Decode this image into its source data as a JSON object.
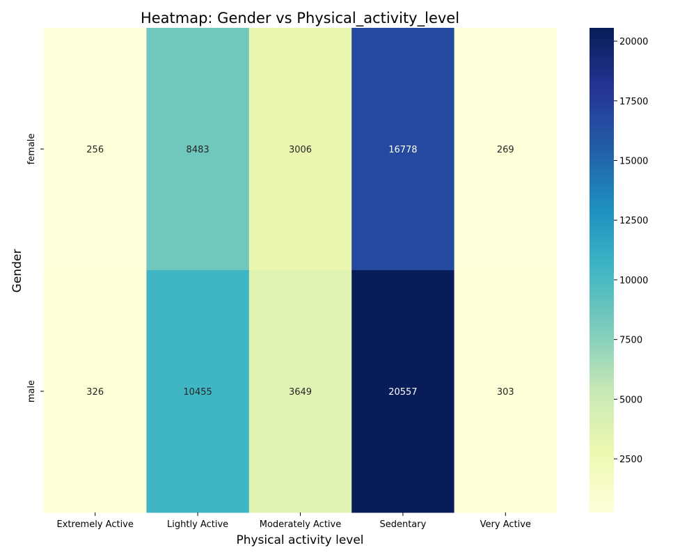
{
  "chart_data": {
    "type": "heatmap",
    "title": "Heatmap: Gender vs Physical_activity_level",
    "xlabel": "Physical activity level",
    "ylabel": "Gender",
    "x_categories": [
      "Extremely Active",
      "Lightly Active",
      "Moderately Active",
      "Sedentary",
      "Very Active"
    ],
    "y_categories": [
      "female",
      "male"
    ],
    "values": [
      [
        256,
        8483,
        3006,
        16778,
        269
      ],
      [
        326,
        10455,
        3649,
        20557,
        303
      ]
    ],
    "colormap": "YlGnBu",
    "colorbar": {
      "vmin": 256,
      "vmax": 20557,
      "ticks": [
        2500,
        5000,
        7500,
        10000,
        12500,
        15000,
        17500,
        20000
      ]
    }
  }
}
